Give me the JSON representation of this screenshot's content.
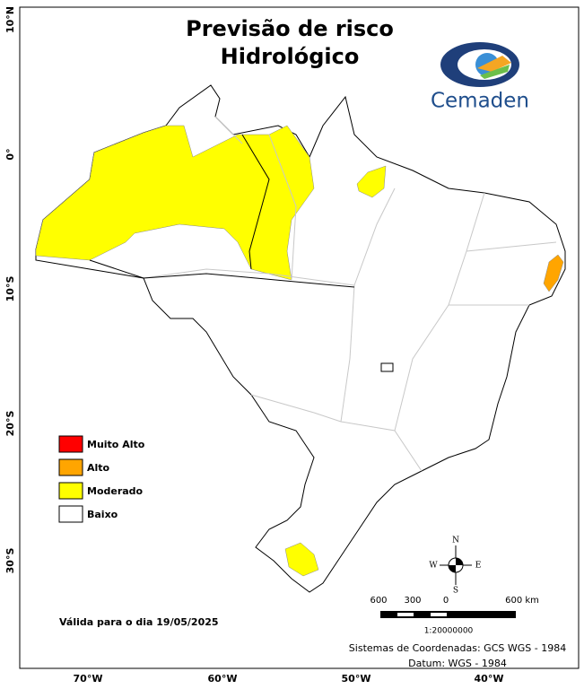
{
  "header": {
    "title_line1": "Previsão de risco",
    "title_line2": "Hidrológico"
  },
  "logo": {
    "text": "Cemaden"
  },
  "axes": {
    "x_labels": [
      "70°W",
      "60°W",
      "50°W",
      "40°W"
    ],
    "y_labels": [
      "10°N",
      "0°",
      "10°S",
      "20°S",
      "30°S"
    ]
  },
  "legend": [
    {
      "label": "Muito Alto",
      "color": "#ff0000"
    },
    {
      "label": "Alto",
      "color": "#ffa500"
    },
    {
      "label": "Moderado",
      "color": "#ffff00"
    },
    {
      "label": "Baixo",
      "color": "#ffffff"
    }
  ],
  "validity": "Válida para o dia 19/05/2025",
  "compass": {
    "n": "N",
    "s": "S",
    "e": "E",
    "w": "W"
  },
  "scale": {
    "labels": [
      "600",
      "300",
      "0",
      "600 km"
    ],
    "ratio": "1:20000000"
  },
  "footer": {
    "coordinates": "Sistemas de Coordenadas: GCS WGS - 1984",
    "datum": "Datum: WGS - 1984"
  }
}
